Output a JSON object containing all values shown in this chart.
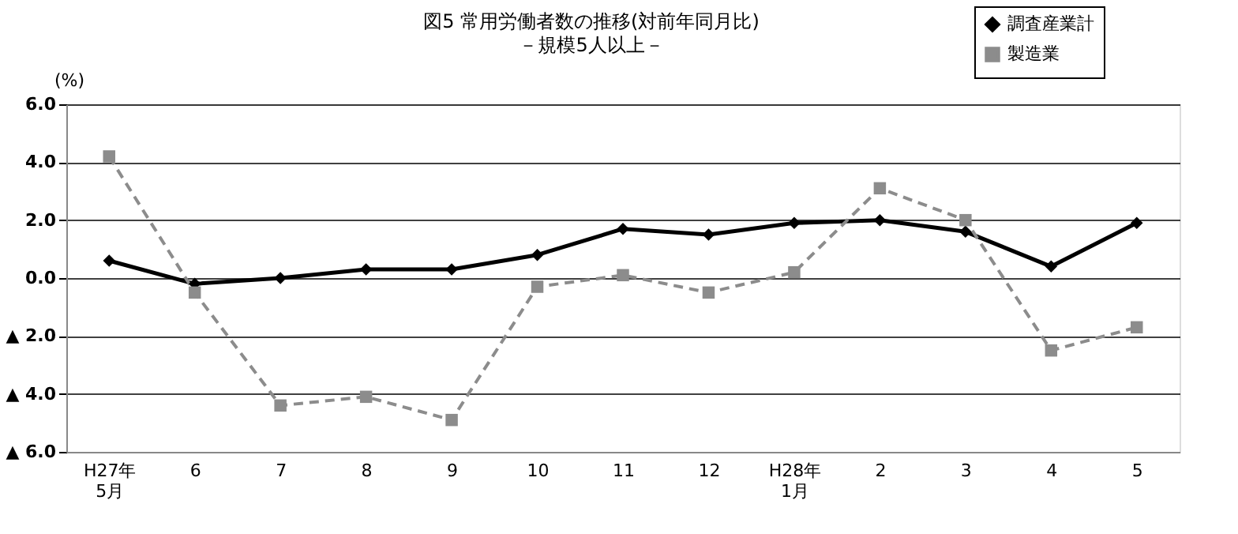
{
  "chart_data": {
    "type": "line",
    "title": "図5 常用労働者数の推移(対前年同月比)",
    "subtitle": "－規模5人以上－",
    "ylabel": "(%)",
    "categories": [
      "H27年\n5月",
      "6",
      "7",
      "8",
      "9",
      "10",
      "11",
      "12",
      "H28年\n1月",
      "2",
      "3",
      "4",
      "5"
    ],
    "series": [
      {
        "name": "調査産業計",
        "color": "#000000",
        "marker": "diamond",
        "line_style": "solid",
        "values": [
          0.6,
          -0.2,
          0.0,
          0.3,
          0.3,
          0.8,
          1.7,
          1.5,
          1.9,
          2.0,
          1.6,
          0.4,
          1.9
        ]
      },
      {
        "name": "製造業",
        "color": "#8c8c8c",
        "marker": "square",
        "line_style": "dashed",
        "values": [
          4.2,
          -0.5,
          -4.4,
          -4.1,
          -4.9,
          -0.3,
          0.1,
          -0.5,
          0.2,
          3.1,
          2.0,
          -2.5,
          -1.7
        ]
      }
    ],
    "ylim": [
      -6,
      6
    ],
    "yticks": [
      {
        "value": 6,
        "label": "6.0"
      },
      {
        "value": 4,
        "label": "4.0"
      },
      {
        "value": 2,
        "label": "2.0"
      },
      {
        "value": 0,
        "label": "0.0"
      },
      {
        "value": -2,
        "label": "▲ 2.0"
      },
      {
        "value": -4,
        "label": "▲ 4.0"
      },
      {
        "value": -6,
        "label": "▲ 6.0"
      }
    ],
    "grid": "y",
    "legend": "top right"
  }
}
